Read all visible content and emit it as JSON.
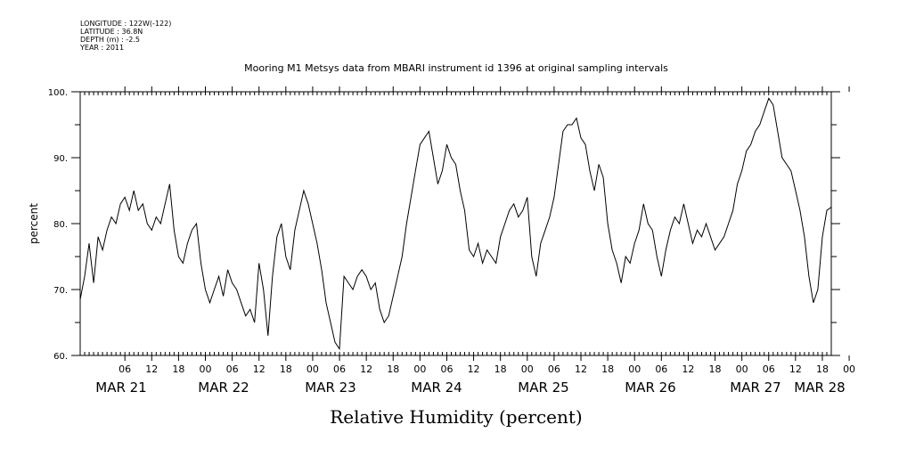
{
  "header": {
    "longitude": "LONGITUDE : 122W(-122)",
    "latitude": "LATITUDE : 36.8N",
    "depth": "DEPTH (m) : -2.5",
    "year": "YEAR : 2011"
  },
  "chart_data": {
    "type": "line",
    "title": "Mooring M1 Metsys data from MBARI instrument id 1396 at original sampling intervals",
    "xlabel": "Relative Humidity (percent)",
    "ylabel": "percent",
    "ylim": [
      60,
      100
    ],
    "yticks": [
      "60.",
      "70.",
      "80.",
      "90.",
      "100."
    ],
    "xlim_hours": [
      0,
      168
    ],
    "x_start_date": "2011-03-20 20:00",
    "hour_ticks": [
      "06",
      "12",
      "18",
      "00",
      "06",
      "12",
      "18",
      "00",
      "06",
      "12",
      "18",
      "00",
      "06",
      "12",
      "18",
      "00",
      "06",
      "12",
      "18",
      "00",
      "06",
      "12",
      "18",
      "00",
      "06",
      "12",
      "18",
      "00"
    ],
    "date_labels": [
      "MAR 21",
      "MAR 22",
      "MAR 23",
      "MAR 24",
      "MAR 25",
      "MAR 26",
      "MAR 27",
      "MAR 28"
    ],
    "grid": false,
    "series": [
      {
        "values": [
          [
            0,
            68.5
          ],
          [
            1,
            72
          ],
          [
            2,
            77
          ],
          [
            3,
            71
          ],
          [
            4,
            78
          ],
          [
            5,
            76
          ],
          [
            6,
            79
          ],
          [
            7,
            81
          ],
          [
            8,
            80
          ],
          [
            9,
            83
          ],
          [
            10,
            84
          ],
          [
            11,
            82
          ],
          [
            12,
            85
          ],
          [
            13,
            82
          ],
          [
            14,
            83
          ],
          [
            15,
            80
          ],
          [
            16,
            79
          ],
          [
            17,
            81
          ],
          [
            18,
            80
          ],
          [
            19,
            83
          ],
          [
            20,
            86
          ],
          [
            21,
            79
          ],
          [
            22,
            75
          ],
          [
            23,
            74
          ],
          [
            24,
            77
          ],
          [
            25,
            79
          ],
          [
            26,
            80
          ],
          [
            27,
            74
          ],
          [
            28,
            70
          ],
          [
            29,
            68
          ],
          [
            30,
            70
          ],
          [
            31,
            72
          ],
          [
            32,
            69
          ],
          [
            33,
            73
          ],
          [
            34,
            71
          ],
          [
            35,
            70
          ],
          [
            36,
            68
          ],
          [
            37,
            66
          ],
          [
            38,
            67
          ],
          [
            39,
            65
          ],
          [
            40,
            74
          ],
          [
            41,
            70
          ],
          [
            42,
            63
          ],
          [
            43,
            72
          ],
          [
            44,
            78
          ],
          [
            45,
            80
          ],
          [
            46,
            75
          ],
          [
            47,
            73
          ],
          [
            48,
            79
          ],
          [
            49,
            82
          ],
          [
            50,
            85
          ],
          [
            51,
            83
          ],
          [
            52,
            80
          ],
          [
            53,
            77
          ],
          [
            54,
            73
          ],
          [
            55,
            68
          ],
          [
            56,
            65
          ],
          [
            57,
            62
          ],
          [
            58,
            61
          ],
          [
            59,
            72
          ],
          [
            60,
            71
          ],
          [
            61,
            70
          ],
          [
            62,
            72
          ],
          [
            63,
            73
          ],
          [
            64,
            72
          ],
          [
            65,
            70
          ],
          [
            66,
            71
          ],
          [
            67,
            67
          ],
          [
            68,
            65
          ],
          [
            69,
            66
          ],
          [
            70,
            69
          ],
          [
            71,
            72
          ],
          [
            72,
            75
          ],
          [
            73,
            80
          ],
          [
            74,
            84
          ],
          [
            75,
            88
          ],
          [
            76,
            92
          ],
          [
            77,
            93
          ],
          [
            78,
            94
          ],
          [
            79,
            90
          ],
          [
            80,
            86
          ],
          [
            81,
            88
          ],
          [
            82,
            92
          ],
          [
            83,
            90
          ],
          [
            84,
            89
          ],
          [
            85,
            85
          ],
          [
            86,
            82
          ],
          [
            87,
            76
          ],
          [
            88,
            75
          ],
          [
            89,
            77
          ],
          [
            90,
            74
          ],
          [
            91,
            76
          ],
          [
            92,
            75
          ],
          [
            93,
            74
          ],
          [
            94,
            78
          ],
          [
            95,
            80
          ],
          [
            96,
            82
          ],
          [
            97,
            83
          ],
          [
            98,
            81
          ],
          [
            99,
            82
          ],
          [
            100,
            84
          ],
          [
            101,
            75
          ],
          [
            102,
            72
          ],
          [
            103,
            77
          ],
          [
            104,
            79
          ],
          [
            105,
            81
          ],
          [
            106,
            84
          ],
          [
            107,
            89
          ],
          [
            108,
            94
          ],
          [
            109,
            95
          ],
          [
            110,
            95
          ],
          [
            111,
            96
          ],
          [
            112,
            93
          ],
          [
            113,
            92
          ],
          [
            114,
            88
          ],
          [
            115,
            85
          ],
          [
            116,
            89
          ],
          [
            117,
            87
          ],
          [
            118,
            80
          ],
          [
            119,
            76
          ],
          [
            120,
            74
          ],
          [
            121,
            71
          ],
          [
            122,
            75
          ],
          [
            123,
            74
          ],
          [
            124,
            77
          ],
          [
            125,
            79
          ],
          [
            126,
            83
          ],
          [
            127,
            80
          ],
          [
            128,
            79
          ],
          [
            129,
            75
          ],
          [
            130,
            72
          ],
          [
            131,
            76
          ],
          [
            132,
            79
          ],
          [
            133,
            81
          ],
          [
            134,
            80
          ],
          [
            135,
            83
          ],
          [
            136,
            80
          ],
          [
            137,
            77
          ],
          [
            138,
            79
          ],
          [
            139,
            78
          ],
          [
            140,
            80
          ],
          [
            141,
            78
          ],
          [
            142,
            76
          ],
          [
            143,
            77
          ],
          [
            144,
            78
          ],
          [
            145,
            80
          ],
          [
            146,
            82
          ],
          [
            147,
            86
          ],
          [
            148,
            88
          ],
          [
            149,
            91
          ],
          [
            150,
            92
          ],
          [
            151,
            94
          ],
          [
            152,
            95
          ],
          [
            153,
            97
          ],
          [
            154,
            99
          ],
          [
            155,
            98
          ],
          [
            156,
            94
          ],
          [
            157,
            90
          ],
          [
            158,
            89
          ],
          [
            159,
            88
          ],
          [
            160,
            85
          ],
          [
            161,
            82
          ],
          [
            162,
            78
          ],
          [
            163,
            72
          ],
          [
            164,
            68
          ],
          [
            165,
            70
          ],
          [
            166,
            78
          ],
          [
            167,
            82
          ],
          [
            168,
            82.5
          ]
        ]
      }
    ]
  }
}
